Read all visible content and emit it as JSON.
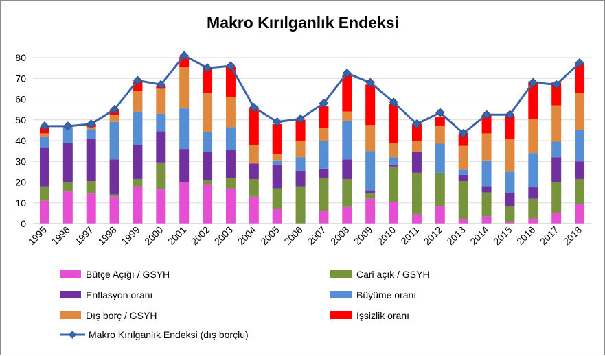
{
  "chart_data": {
    "type": "bar",
    "stacked": true,
    "title": "Makro Kırılganlık Endeksi",
    "xlabel": "",
    "ylabel": "",
    "ylim": [
      0,
      80
    ],
    "yticks": [
      0,
      10,
      20,
      30,
      40,
      50,
      60,
      70,
      80
    ],
    "grid": true,
    "legend_position": "bottom",
    "categories": [
      "1995",
      "1996",
      "1997",
      "1998",
      "1999",
      "2000",
      "2001",
      "2002",
      "2003",
      "2004",
      "2005",
      "2006",
      "2007",
      "2008",
      "2009",
      "2010",
      "2011",
      "2012",
      "2013",
      "2014",
      "2015",
      "2016",
      "2017",
      "2018"
    ],
    "series": [
      {
        "name": "Bütçe Açığı / GSYH",
        "kind": "bar",
        "color": "#e64fd3",
        "values": [
          11,
          15.5,
          14.5,
          13,
          18,
          16.5,
          20,
          19,
          17,
          13,
          7,
          0,
          6,
          8,
          12,
          10.5,
          4.5,
          8.5,
          2,
          3.5,
          1,
          2.5,
          5,
          9.5
        ]
      },
      {
        "name": "Cari açık / GSYH",
        "kind": "bar",
        "color": "#77933c",
        "values": [
          7,
          4.5,
          6,
          1,
          3.5,
          13,
          0,
          2,
          5,
          8.5,
          10,
          18,
          16,
          13.5,
          2.5,
          17,
          20,
          16,
          18.5,
          11.5,
          7.5,
          9.5,
          15,
          12
        ]
      },
      {
        "name": "Enflasyon oranı",
        "kind": "bar",
        "color": "#7030a0",
        "values": [
          18.5,
          19,
          20.5,
          17,
          16.5,
          15,
          16,
          13.5,
          13.5,
          7.5,
          11.5,
          7.5,
          4.5,
          9.5,
          1.5,
          1,
          10,
          0,
          3,
          3,
          6.5,
          5.5,
          12,
          8.5
        ]
      },
      {
        "name": "Büyüme oranı",
        "kind": "bar",
        "color": "#558ed5",
        "values": [
          5.5,
          7.5,
          4.5,
          18,
          16,
          8.5,
          19.5,
          9.5,
          11,
          0,
          2,
          6.5,
          13.5,
          18.5,
          19,
          3.5,
          0,
          14,
          2.5,
          12.5,
          10,
          16.5,
          7.5,
          15
        ]
      },
      {
        "name": "Dış borç / GSYH",
        "kind": "bar",
        "color": "#e0883e",
        "values": [
          1.5,
          0.5,
          1,
          3.5,
          10,
          12,
          20,
          19,
          14.5,
          9,
          3,
          8,
          6,
          4.5,
          12.5,
          7,
          5.5,
          8.5,
          11.5,
          13,
          16,
          16.5,
          17.5,
          18
        ]
      },
      {
        "name": "İşsizlik oranı",
        "kind": "bar",
        "color": "#ff0000",
        "values": [
          3,
          0,
          1.5,
          2,
          4.5,
          1.5,
          5,
          12,
          14.5,
          17.5,
          14.5,
          10,
          10.5,
          17.5,
          19.5,
          18.5,
          8,
          4.5,
          5.5,
          9,
          11,
          18,
          11,
          14
        ]
      },
      {
        "name": "Makro Kırılganlık Endeksi (dış borçlu)",
        "kind": "line",
        "color": "#3a64a8",
        "values": [
          47,
          47,
          48,
          55,
          69,
          67,
          81,
          75,
          76,
          56,
          49,
          50.5,
          58,
          72.5,
          68,
          58.5,
          48,
          53.5,
          43.5,
          52.5,
          52.5,
          68,
          67,
          77.5
        ]
      }
    ]
  }
}
